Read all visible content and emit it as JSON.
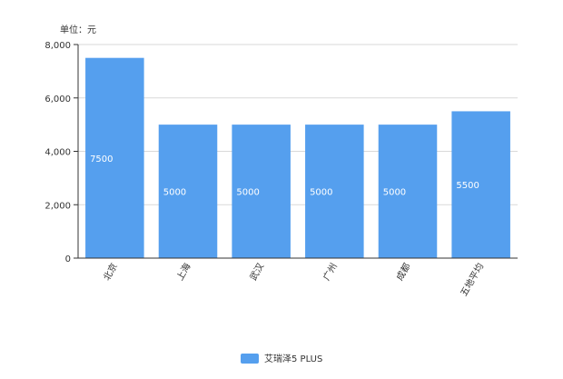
{
  "chart_data": {
    "type": "bar",
    "unit_label": "单位：元",
    "categories": [
      "北京",
      "上海",
      "武汉",
      "广州",
      "成都",
      "五地平均"
    ],
    "series": [
      {
        "name": "艾瑞泽5 PLUS",
        "values": [
          7500,
          5000,
          5000,
          5000,
          5000,
          5500
        ],
        "color": "#559FEE"
      }
    ],
    "ylim": [
      0,
      8000
    ],
    "yticks": [
      0,
      2000,
      4000,
      6000,
      8000
    ],
    "ytick_labels": [
      "0",
      "2,000",
      "4,000",
      "6,000",
      "8,000"
    ],
    "grid": true,
    "legend_position": "bottom-center",
    "data_label_color": "#ffffff",
    "grid_color": "#d9d9d9",
    "axis_color": "#333333"
  }
}
